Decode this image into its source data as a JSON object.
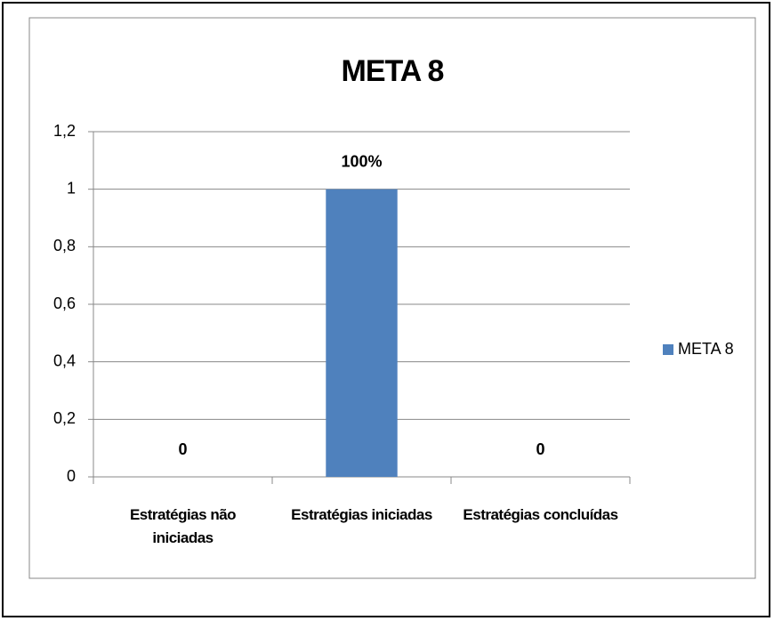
{
  "chart_data": {
    "type": "bar",
    "title": "META 8",
    "categories": [
      "Estratégias não iniciadas",
      "Estratégias iniciadas",
      "Estratégias concluídas"
    ],
    "series": [
      {
        "name": "META 8",
        "color": "#4f81bd",
        "values": [
          0,
          1,
          0
        ],
        "value_labels": [
          "0",
          "100%",
          "0"
        ]
      }
    ],
    "ylim": [
      0,
      1.2
    ],
    "yticks": [
      0,
      {
        "value": 0.2,
        "label": "0,2"
      },
      {
        "value": 0.4,
        "label": "0,4"
      },
      {
        "value": 0.6,
        "label": "0,6"
      },
      {
        "value": 0.8,
        "label": "0,8"
      },
      1,
      {
        "value": 1.2,
        "label": "1,2"
      }
    ],
    "grid": true,
    "legend": "right"
  }
}
